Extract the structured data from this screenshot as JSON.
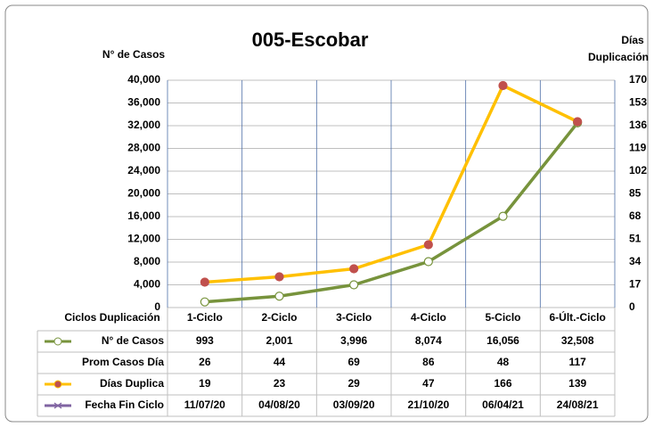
{
  "chart_data": {
    "type": "line",
    "title": "005-Escobar",
    "ylabel": "N° de Casos",
    "y2label": [
      "Días",
      "Duplicación"
    ],
    "xlabel": "Ciclos Duplicación",
    "categories": [
      "1-Ciclo",
      "2-Ciclo",
      "3-Ciclo",
      "4-Ciclo",
      "5-Ciclo",
      "6-Últ.-Ciclo"
    ],
    "ylim": [
      0,
      40000
    ],
    "yticks": [
      0,
      {
        "value": 4000,
        "label": "4,000"
      },
      {
        "value": 8000,
        "label": "8,000"
      },
      {
        "value": 12000,
        "label": "12,000"
      },
      {
        "value": 16000,
        "label": "16,000"
      },
      {
        "value": 20000,
        "label": "20,000"
      },
      {
        "value": 24000,
        "label": "24,000"
      },
      {
        "value": 28000,
        "label": "28,000"
      },
      {
        "value": 32000,
        "label": "32,000"
      },
      {
        "value": 36000,
        "label": "36,000"
      },
      {
        "value": 40000,
        "label": "40,000"
      }
    ],
    "y2lim": [
      0,
      170
    ],
    "y2ticks": [
      0,
      17,
      34,
      51,
      68,
      85,
      102,
      119,
      136,
      153,
      170
    ],
    "grid": true,
    "series": [
      {
        "name": "N° de Casos",
        "color": "#77933c",
        "marker_fill": "#ffffff",
        "values": [
          993,
          2001,
          3996,
          8074,
          16056,
          32508
        ],
        "value_labels": [
          "993",
          "2,001",
          "3,996",
          "8,074",
          "16,056",
          "32,508"
        ]
      },
      {
        "name": "Días Duplica",
        "color": "#ffc000",
        "marker_fill": "#c0504d",
        "axis": "y2",
        "values": [
          19,
          23,
          29,
          47,
          166,
          139
        ]
      }
    ],
    "table_rows": [
      {
        "name": "Prom Casos Día",
        "values": [
          26,
          44,
          69,
          86,
          48,
          117
        ]
      },
      {
        "name": "Fecha Fin Ciclo",
        "color": "#8064a2",
        "values": [
          "11/07/20",
          "04/08/20",
          "03/09/20",
          "21/10/20",
          "06/04/21",
          "24/08/21"
        ]
      }
    ]
  }
}
